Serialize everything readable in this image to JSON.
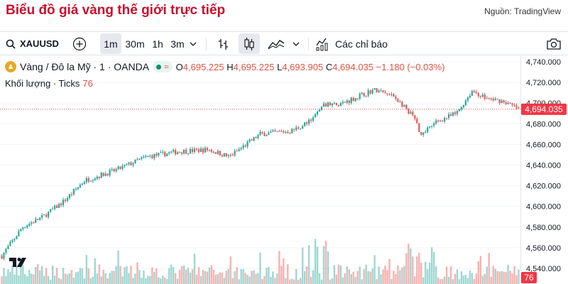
{
  "page": {
    "title": "Biểu đồ giá vàng thế giới trực tiếp",
    "source": "Nguồn: TradingView"
  },
  "toolbar": {
    "symbol": "XAUUSD",
    "intervals": [
      "1m",
      "30m",
      "1h",
      "3m"
    ],
    "active_interval": "1m",
    "indicators_label": "Các chỉ báo",
    "icons": [
      "search-icon",
      "plus-circle-icon",
      "chevron-down-icon",
      "bar-chart-icon",
      "candlestick-icon",
      "area-chart-icon",
      "chevron-down-icon",
      "indicators-icon",
      "camera-icon"
    ]
  },
  "legend": {
    "name": "Vàng / Đô la Mỹ · 1 · OANDA",
    "status_symbol": "≈",
    "o_label": "O",
    "o_value": "4,695.225",
    "h_label": "H",
    "h_value": "4,695.225",
    "l_label": "L",
    "l_value": "4,693.905",
    "c_label": "C",
    "c_value": "4,694.035",
    "change": "−1.180 (−0.03%)",
    "volume_label": "Khối lượng · Ticks",
    "volume_value": "76"
  },
  "colors": {
    "up": "#26a69a",
    "down": "#ef5350",
    "title_red": "#c8102e",
    "price_tag": "#f23645",
    "grid": "#f0f3fa"
  },
  "chart_data": {
    "type": "candlestick",
    "price_axis_ticks": [
      "4,740.000",
      "4,720.000",
      "4,700.000",
      "4,680.000",
      "4,660.000",
      "4,640.000",
      "4,620.000",
      "4,600.000",
      "4,580.000",
      "4,560.000",
      "4,540.000"
    ],
    "ylim": [
      4536,
      4752
    ],
    "current_price": "4,694.035",
    "current_volume": "76",
    "price_path": [
      [
        0,
        4552
      ],
      [
        0.04,
        4580
      ],
      [
        0.08,
        4590
      ],
      [
        0.12,
        4605
      ],
      [
        0.16,
        4625
      ],
      [
        0.22,
        4635
      ],
      [
        0.28,
        4648
      ],
      [
        0.34,
        4653
      ],
      [
        0.4,
        4655
      ],
      [
        0.44,
        4648
      ],
      [
        0.5,
        4670
      ],
      [
        0.56,
        4673
      ],
      [
        0.6,
        4683
      ],
      [
        0.62,
        4698
      ],
      [
        0.66,
        4700
      ],
      [
        0.72,
        4713
      ],
      [
        0.76,
        4706
      ],
      [
        0.8,
        4685
      ],
      [
        0.81,
        4668
      ],
      [
        0.84,
        4682
      ],
      [
        0.88,
        4690
      ],
      [
        0.91,
        4712
      ],
      [
        0.94,
        4704
      ],
      [
        0.97,
        4702
      ],
      [
        1.0,
        4694
      ]
    ]
  }
}
